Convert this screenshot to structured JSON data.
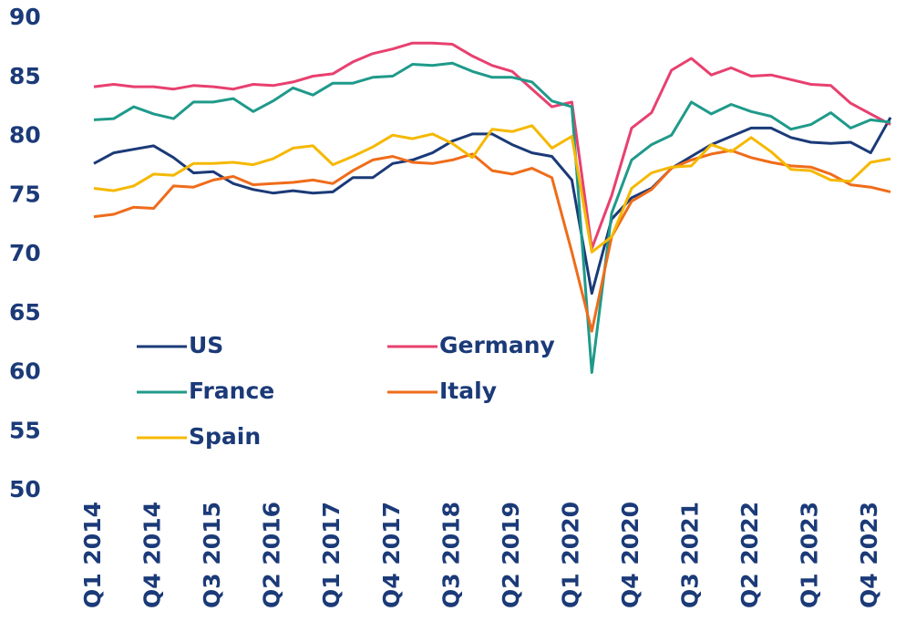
{
  "chart_data": {
    "type": "line",
    "categories": [
      "Q1 2014",
      null,
      null,
      "Q4 2014",
      null,
      null,
      "Q3 2015",
      null,
      null,
      "Q2 2016",
      null,
      null,
      "Q1 2017",
      null,
      null,
      "Q4 2017",
      null,
      null,
      "Q3 2018",
      null,
      null,
      "Q2 2019",
      null,
      null,
      "Q1 2020",
      null,
      null,
      "Q4 2020",
      null,
      null,
      "Q3 2021",
      null,
      null,
      "Q2 2022",
      null,
      null,
      "Q1 2023",
      null,
      null,
      "Q4 2023",
      null
    ],
    "series": [
      {
        "name": "US",
        "color": "#1b3a78",
        "values": [
          77.7,
          78.6,
          78.9,
          79.2,
          78.2,
          76.9,
          77.0,
          76.0,
          75.5,
          75.2,
          75.4,
          75.2,
          75.3,
          76.5,
          76.5,
          77.7,
          78.0,
          78.6,
          79.6,
          80.2,
          80.2,
          79.3,
          78.6,
          78.3,
          76.3,
          66.7,
          73.0,
          74.8,
          75.6,
          77.3,
          78.3,
          79.3,
          80.0,
          80.7,
          80.7,
          79.9,
          79.5,
          79.4,
          79.5,
          78.6,
          81.6
        ]
      },
      {
        "name": "Germany",
        "color": "#e8406f",
        "values": [
          84.2,
          84.4,
          84.2,
          84.2,
          84.0,
          84.3,
          84.2,
          84.0,
          84.4,
          84.3,
          84.6,
          85.1,
          85.3,
          86.3,
          87.0,
          87.4,
          87.9,
          87.9,
          87.8,
          86.8,
          86.0,
          85.5,
          84.0,
          82.5,
          82.9,
          70.5,
          75.0,
          80.7,
          82.0,
          85.6,
          86.6,
          85.2,
          85.8,
          85.1,
          85.2,
          84.8,
          84.4,
          84.3,
          82.8,
          81.9,
          81.0
        ]
      },
      {
        "name": "France",
        "color": "#1f9a8a",
        "values": [
          81.4,
          81.5,
          82.5,
          81.9,
          81.5,
          82.9,
          82.9,
          83.2,
          82.1,
          83.0,
          84.1,
          83.5,
          84.5,
          84.5,
          85.0,
          85.1,
          86.1,
          86.0,
          86.2,
          85.5,
          85.0,
          85.0,
          84.6,
          83.0,
          82.5,
          60.0,
          73.5,
          78.0,
          79.3,
          80.1,
          82.9,
          81.9,
          82.7,
          82.1,
          81.7,
          80.6,
          81.0,
          82.0,
          80.7,
          81.4,
          81.2
        ]
      },
      {
        "name": "Italy",
        "color": "#ef6c1a",
        "values": [
          73.2,
          73.4,
          74.0,
          73.9,
          75.8,
          75.7,
          76.3,
          76.6,
          75.9,
          76.0,
          76.1,
          76.3,
          76.0,
          77.1,
          78.0,
          78.3,
          77.8,
          77.7,
          78.0,
          78.5,
          77.1,
          76.8,
          77.3,
          76.5,
          70.2,
          63.5,
          71.5,
          74.5,
          75.5,
          77.3,
          78.0,
          78.5,
          78.8,
          78.2,
          77.8,
          77.5,
          77.4,
          76.8,
          75.9,
          75.7,
          75.3
        ]
      },
      {
        "name": "Spain",
        "color": "#f5b800",
        "values": [
          75.6,
          75.4,
          75.8,
          76.8,
          76.7,
          77.7,
          77.7,
          77.8,
          77.6,
          78.1,
          79.0,
          79.2,
          77.6,
          78.3,
          79.1,
          80.1,
          79.8,
          80.2,
          79.4,
          78.2,
          80.6,
          80.4,
          80.9,
          79.0,
          80.0,
          70.2,
          71.5,
          75.6,
          76.9,
          77.4,
          77.5,
          79.3,
          78.7,
          79.9,
          78.7,
          77.2,
          77.1,
          76.3,
          76.2,
          77.8,
          78.1
        ]
      }
    ],
    "ylim": [
      50,
      90
    ],
    "yticks": [
      50,
      55,
      60,
      65,
      70,
      75,
      80,
      85,
      90
    ],
    "grid": false
  }
}
